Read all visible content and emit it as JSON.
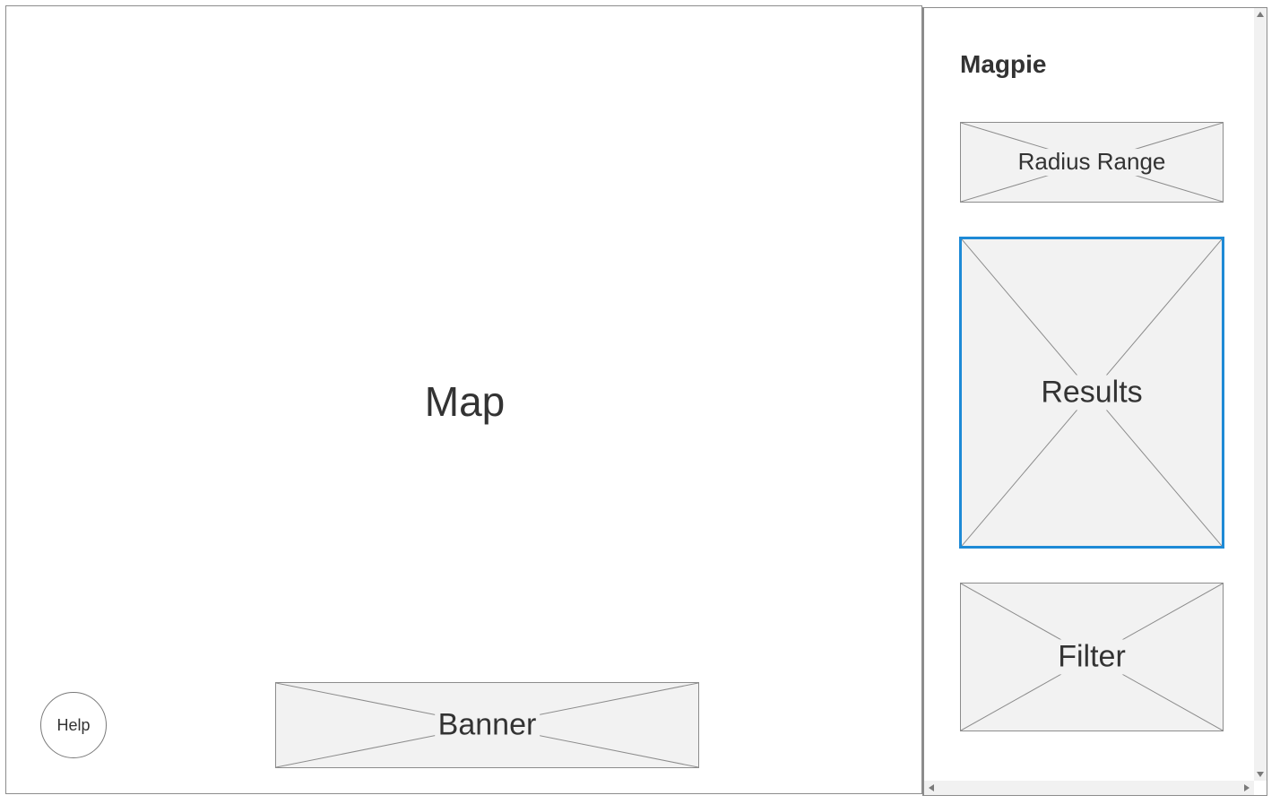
{
  "map": {
    "label": "Map"
  },
  "help": {
    "label": "Help"
  },
  "banner": {
    "label": "Banner"
  },
  "panel": {
    "title": "Magpie",
    "radius_range": {
      "label": "Radius Range"
    },
    "results": {
      "label": "Results"
    },
    "filter": {
      "label": "Filter"
    }
  },
  "colors": {
    "border": "#8c8c8c",
    "placeholder_fill": "#f2f2f2",
    "selected_outline": "#1e8ad6",
    "text": "#333333"
  },
  "icons": {
    "scroll_up": "scroll-up-arrow-icon",
    "scroll_down": "scroll-down-arrow-icon",
    "scroll_left": "scroll-left-arrow-icon",
    "scroll_right": "scroll-right-arrow-icon",
    "placeholder_cross": "image-placeholder-cross-icon"
  }
}
